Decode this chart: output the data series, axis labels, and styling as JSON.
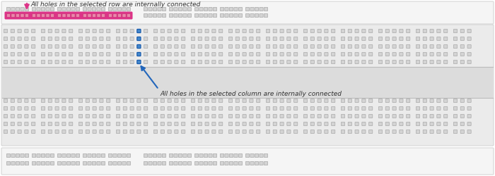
{
  "bg_color": "#ffffff",
  "hole_color_normal": "#d4d4d4",
  "hole_edge_normal": "#aaaaaa",
  "hole_color_pink": "#cc3377",
  "hole_edge_pink": "#aa0055",
  "hole_color_blue": "#4488cc",
  "hole_edge_blue": "#1155aa",
  "hole_color_pink_dot": "#e06090",
  "highlight_row_color": "#dd3388",
  "highlight_col_color": "#2266bb",
  "title_row": "All holes in the selected row are internally connected",
  "title_col": "All holes in the selected column are internally connected",
  "title_color": "#333333",
  "arrow_row_color": "#dd3388",
  "arrow_col_color": "#2266bb",
  "fig_width": 7.0,
  "fig_height": 2.5,
  "dpi": 100
}
